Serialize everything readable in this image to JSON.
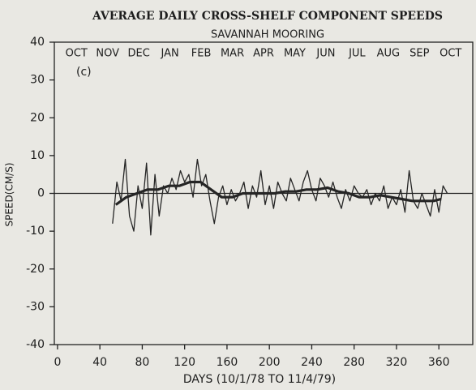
{
  "chart_data": {
    "type": "line",
    "title": "AVERAGE DAILY CROSS-SHELF COMPONENT SPEEDS",
    "subtitle": "SAVANNAH MOORING",
    "x_label": "DAYS (10/1/78 TO 11/4/79)",
    "y_label": "SPEED(CM/S)",
    "annotation": "(c)",
    "month_labels": [
      "OCT",
      "NOV",
      "DEC",
      "JAN",
      "FEB",
      "MAR",
      "APR",
      "MAY",
      "JUN",
      "JUL",
      "AUG",
      "SEP",
      "OCT"
    ],
    "xlim": [
      -3,
      392
    ],
    "ylim": [
      -40,
      40
    ],
    "xticks": [
      0,
      40,
      80,
      120,
      160,
      200,
      240,
      280,
      320,
      360
    ],
    "yticks": [
      -40,
      -30,
      -20,
      -10,
      0,
      10,
      20,
      30,
      40
    ],
    "color": "#252525",
    "series": [
      {
        "x": [
          52,
          56,
          60,
          64,
          68,
          72,
          76,
          80,
          84,
          88,
          92,
          96,
          100,
          104,
          108,
          112,
          116,
          120,
          124,
          128,
          132,
          136,
          140,
          144,
          148,
          152,
          156,
          160,
          164,
          168,
          172,
          176,
          180,
          184,
          188,
          192,
          196,
          200,
          204,
          208,
          212,
          216,
          220,
          224,
          228,
          232,
          236,
          240,
          244,
          248,
          252,
          256,
          260,
          264,
          268,
          272,
          276,
          280,
          284,
          288,
          292,
          296,
          300,
          304,
          308,
          312,
          316,
          320,
          324,
          328,
          332,
          336,
          340,
          344,
          348,
          352,
          356,
          360,
          364,
          368
        ],
        "values": [
          -8,
          3,
          -2,
          9,
          -6,
          -10,
          2,
          -4,
          8,
          -11,
          5,
          -6,
          2,
          0,
          4,
          1,
          6,
          3,
          5,
          -1,
          9,
          2,
          5,
          -2,
          -8,
          -1,
          2,
          -3,
          1,
          -2,
          0,
          3,
          -4,
          2,
          -1,
          6,
          -3,
          2,
          -4,
          3,
          0,
          -2,
          4,
          1,
          -2,
          3,
          6,
          1,
          -2,
          4,
          2,
          -1,
          3,
          -1,
          -4,
          1,
          -2,
          2,
          0,
          -1,
          1,
          -3,
          0,
          -2,
          2,
          -4,
          -1,
          -3,
          1,
          -5,
          6,
          -2,
          -4,
          0,
          -3,
          -6,
          1,
          -5,
          2,
          0
        ]
      },
      {
        "x": [
          55,
          65,
          75,
          85,
          95,
          105,
          115,
          125,
          135,
          145,
          155,
          165,
          175,
          185,
          195,
          205,
          215,
          225,
          235,
          245,
          255,
          265,
          275,
          285,
          295,
          305,
          315,
          325,
          335,
          345,
          355,
          362
        ],
        "values": [
          -3,
          -1,
          0,
          1,
          1,
          2,
          2,
          3,
          3,
          1,
          -1,
          -1,
          0,
          0,
          0,
          0,
          0.5,
          0.5,
          1,
          1,
          1.5,
          0.5,
          0,
          -1,
          -1,
          -0.5,
          -1,
          -1.5,
          -2,
          -2,
          -2,
          -1.5
        ]
      }
    ]
  }
}
